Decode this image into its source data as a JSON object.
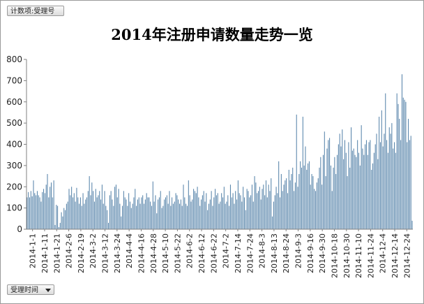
{
  "header": {
    "field_button": "计数项:受理号"
  },
  "footer": {
    "axis_button": "受理时间"
  },
  "chart_data": {
    "type": "bar",
    "title": "2014年注册申请数量走势一览",
    "xlabel": "",
    "ylabel": "",
    "ylim": [
      0,
      800
    ],
    "yticks": [
      0,
      100,
      200,
      300,
      400,
      500,
      600,
      700,
      800
    ],
    "grid": false,
    "legend": "none",
    "bar_color": "#4f7ea6",
    "x_tick_labels": [
      "2014-1-1",
      "2014-1-11",
      "2014-1-21",
      "2014-2-6",
      "2014-2-19",
      "2014-3-2",
      "2014-3-12",
      "2014-3-24",
      "2014-4-4",
      "2014-4-16",
      "2014-4-28",
      "2014-5-10",
      "2014-5-22",
      "2014-6-2",
      "2014-6-12",
      "2014-6-22",
      "2014-7-2",
      "2014-7-14",
      "2014-7-24",
      "2014-8-3",
      "2014-8-13",
      "2014-8-24",
      "2014-9-3",
      "2014-9-16",
      "2014-9-30",
      "2014-10-18",
      "2014-10-30",
      "2014-11-10",
      "2014-11-24",
      "2014-12-4",
      "2014-12-14",
      "2014-12-24"
    ],
    "values": [
      150,
      175,
      150,
      180,
      155,
      230,
      170,
      160,
      180,
      160,
      150,
      130,
      175,
      190,
      170,
      210,
      260,
      150,
      200,
      220,
      150,
      230,
      20,
      115,
      110,
      10,
      30,
      80,
      60,
      100,
      90,
      120,
      130,
      190,
      160,
      200,
      150,
      170,
      130,
      195,
      150,
      120,
      150,
      110,
      170,
      120,
      140,
      150,
      180,
      250,
      160,
      220,
      180,
      130,
      190,
      150,
      160,
      180,
      140,
      210,
      120,
      180,
      110,
      90,
      30,
      160,
      180,
      140,
      110,
      200,
      210,
      150,
      190,
      120,
      60,
      110,
      180,
      150,
      140,
      110,
      170,
      130,
      100,
      120,
      150,
      190,
      110,
      140,
      150,
      120,
      150,
      160,
      120,
      140,
      170,
      150,
      150,
      130,
      110,
      225,
      130,
      160,
      75,
      140,
      150,
      180,
      100,
      110,
      140,
      150,
      160,
      120,
      180,
      110,
      150,
      120,
      130,
      170,
      160,
      140,
      120,
      140,
      110,
      210,
      150,
      120,
      110,
      230,
      160,
      130,
      140,
      190,
      180,
      170,
      200,
      150,
      110,
      140,
      160,
      180,
      130,
      170,
      90,
      120,
      140,
      180,
      110,
      150,
      190,
      160,
      170,
      120,
      130,
      170,
      150,
      200,
      120,
      130,
      160,
      110,
      210,
      150,
      170,
      120,
      180,
      140,
      230,
      170,
      160,
      130,
      200,
      150,
      90,
      190,
      180,
      150,
      160,
      210,
      130,
      250,
      220,
      170,
      180,
      200,
      140,
      190,
      210,
      160,
      230,
      150,
      210,
      180,
      240,
      60,
      130,
      160,
      200,
      170,
      320,
      150,
      260,
      180,
      210,
      230,
      240,
      170,
      280,
      230,
      260,
      290,
      180,
      220,
      540,
      200,
      260,
      320,
      290,
      530,
      300,
      390,
      280,
      310,
      320,
      210,
      260,
      250,
      190,
      180,
      220,
      240,
      290,
      340,
      210,
      350,
      460,
      250,
      380,
      420,
      430,
      300,
      180,
      290,
      340,
      260,
      350,
      400,
      450,
      390,
      470,
      330,
      420,
      360,
      250,
      410,
      290,
      480,
      370,
      380,
      350,
      340,
      420,
      360,
      300,
      490,
      380,
      350,
      400,
      420,
      350,
      410,
      420,
      280,
      310,
      360,
      400,
      450,
      330,
      530,
      410,
      560,
      390,
      450,
      640,
      420,
      360,
      480,
      450,
      500,
      380,
      410,
      360,
      640,
      590,
      520,
      420,
      730,
      620,
      610,
      600,
      410,
      520,
      420,
      440,
      40
    ]
  }
}
